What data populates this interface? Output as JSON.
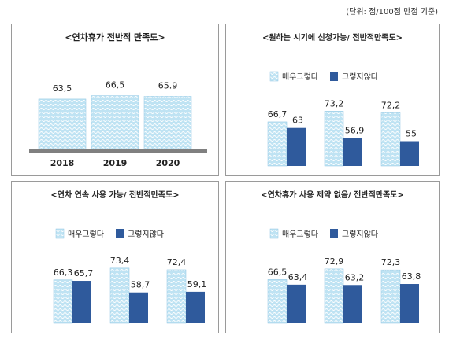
{
  "unit_note": "(단위: 점/100점 만점 기준)",
  "colors": {
    "light": "#bfe3f3",
    "light_stroke": "#8fc6e3",
    "dark": "#2f5a9c",
    "base": "#808080"
  },
  "chart_data": [
    {
      "type": "bar",
      "title": "<연차휴가 전반적 만족도>",
      "categories": [
        "2018",
        "2019",
        "2020"
      ],
      "series": [
        {
          "values": [
            63.5,
            66.5,
            65.9
          ]
        }
      ],
      "value_labels": [
        "63,5",
        "66,5",
        "65.9"
      ],
      "legend": null
    },
    {
      "type": "bar",
      "title": "<원하는 시기에 신청가능/ 전반적만족도>",
      "categories": [
        "",
        "",
        ""
      ],
      "series": [
        {
          "name": "매우그렇다",
          "values": [
            66.7,
            73.2,
            72.2
          ]
        },
        {
          "name": "그렇지않다",
          "values": [
            63,
            56.9,
            55
          ]
        }
      ],
      "value_labels": [
        [
          "66,7",
          "73,2",
          "72,2"
        ],
        [
          "63",
          "56,9",
          "55"
        ]
      ],
      "legend": "top"
    },
    {
      "type": "bar",
      "title": "<연차 연속 사용 가능/ 전반적만족도>",
      "categories": [
        "",
        "",
        ""
      ],
      "series": [
        {
          "name": "매우그렇다",
          "values": [
            66.3,
            73.4,
            72.4
          ]
        },
        {
          "name": "그렇지않다",
          "values": [
            65.7,
            58.7,
            59.1
          ]
        }
      ],
      "value_labels": [
        [
          "66,3",
          "73,4",
          "72,4"
        ],
        [
          "65,7",
          "58,7",
          "59,1"
        ]
      ],
      "legend": "top"
    },
    {
      "type": "bar",
      "title": "<연차휴가 사용 제약 없음/ 전반적만족도>",
      "categories": [
        "",
        "",
        ""
      ],
      "series": [
        {
          "name": "매우그렇다",
          "values": [
            66.5,
            72.9,
            72.3
          ]
        },
        {
          "name": "그렇지않다",
          "values": [
            63.4,
            63.2,
            63.8
          ]
        }
      ],
      "value_labels": [
        [
          "66,5",
          "72,9",
          "72,3"
        ],
        [
          "63,4",
          "63,2",
          "63,8"
        ]
      ],
      "legend": "top"
    }
  ]
}
